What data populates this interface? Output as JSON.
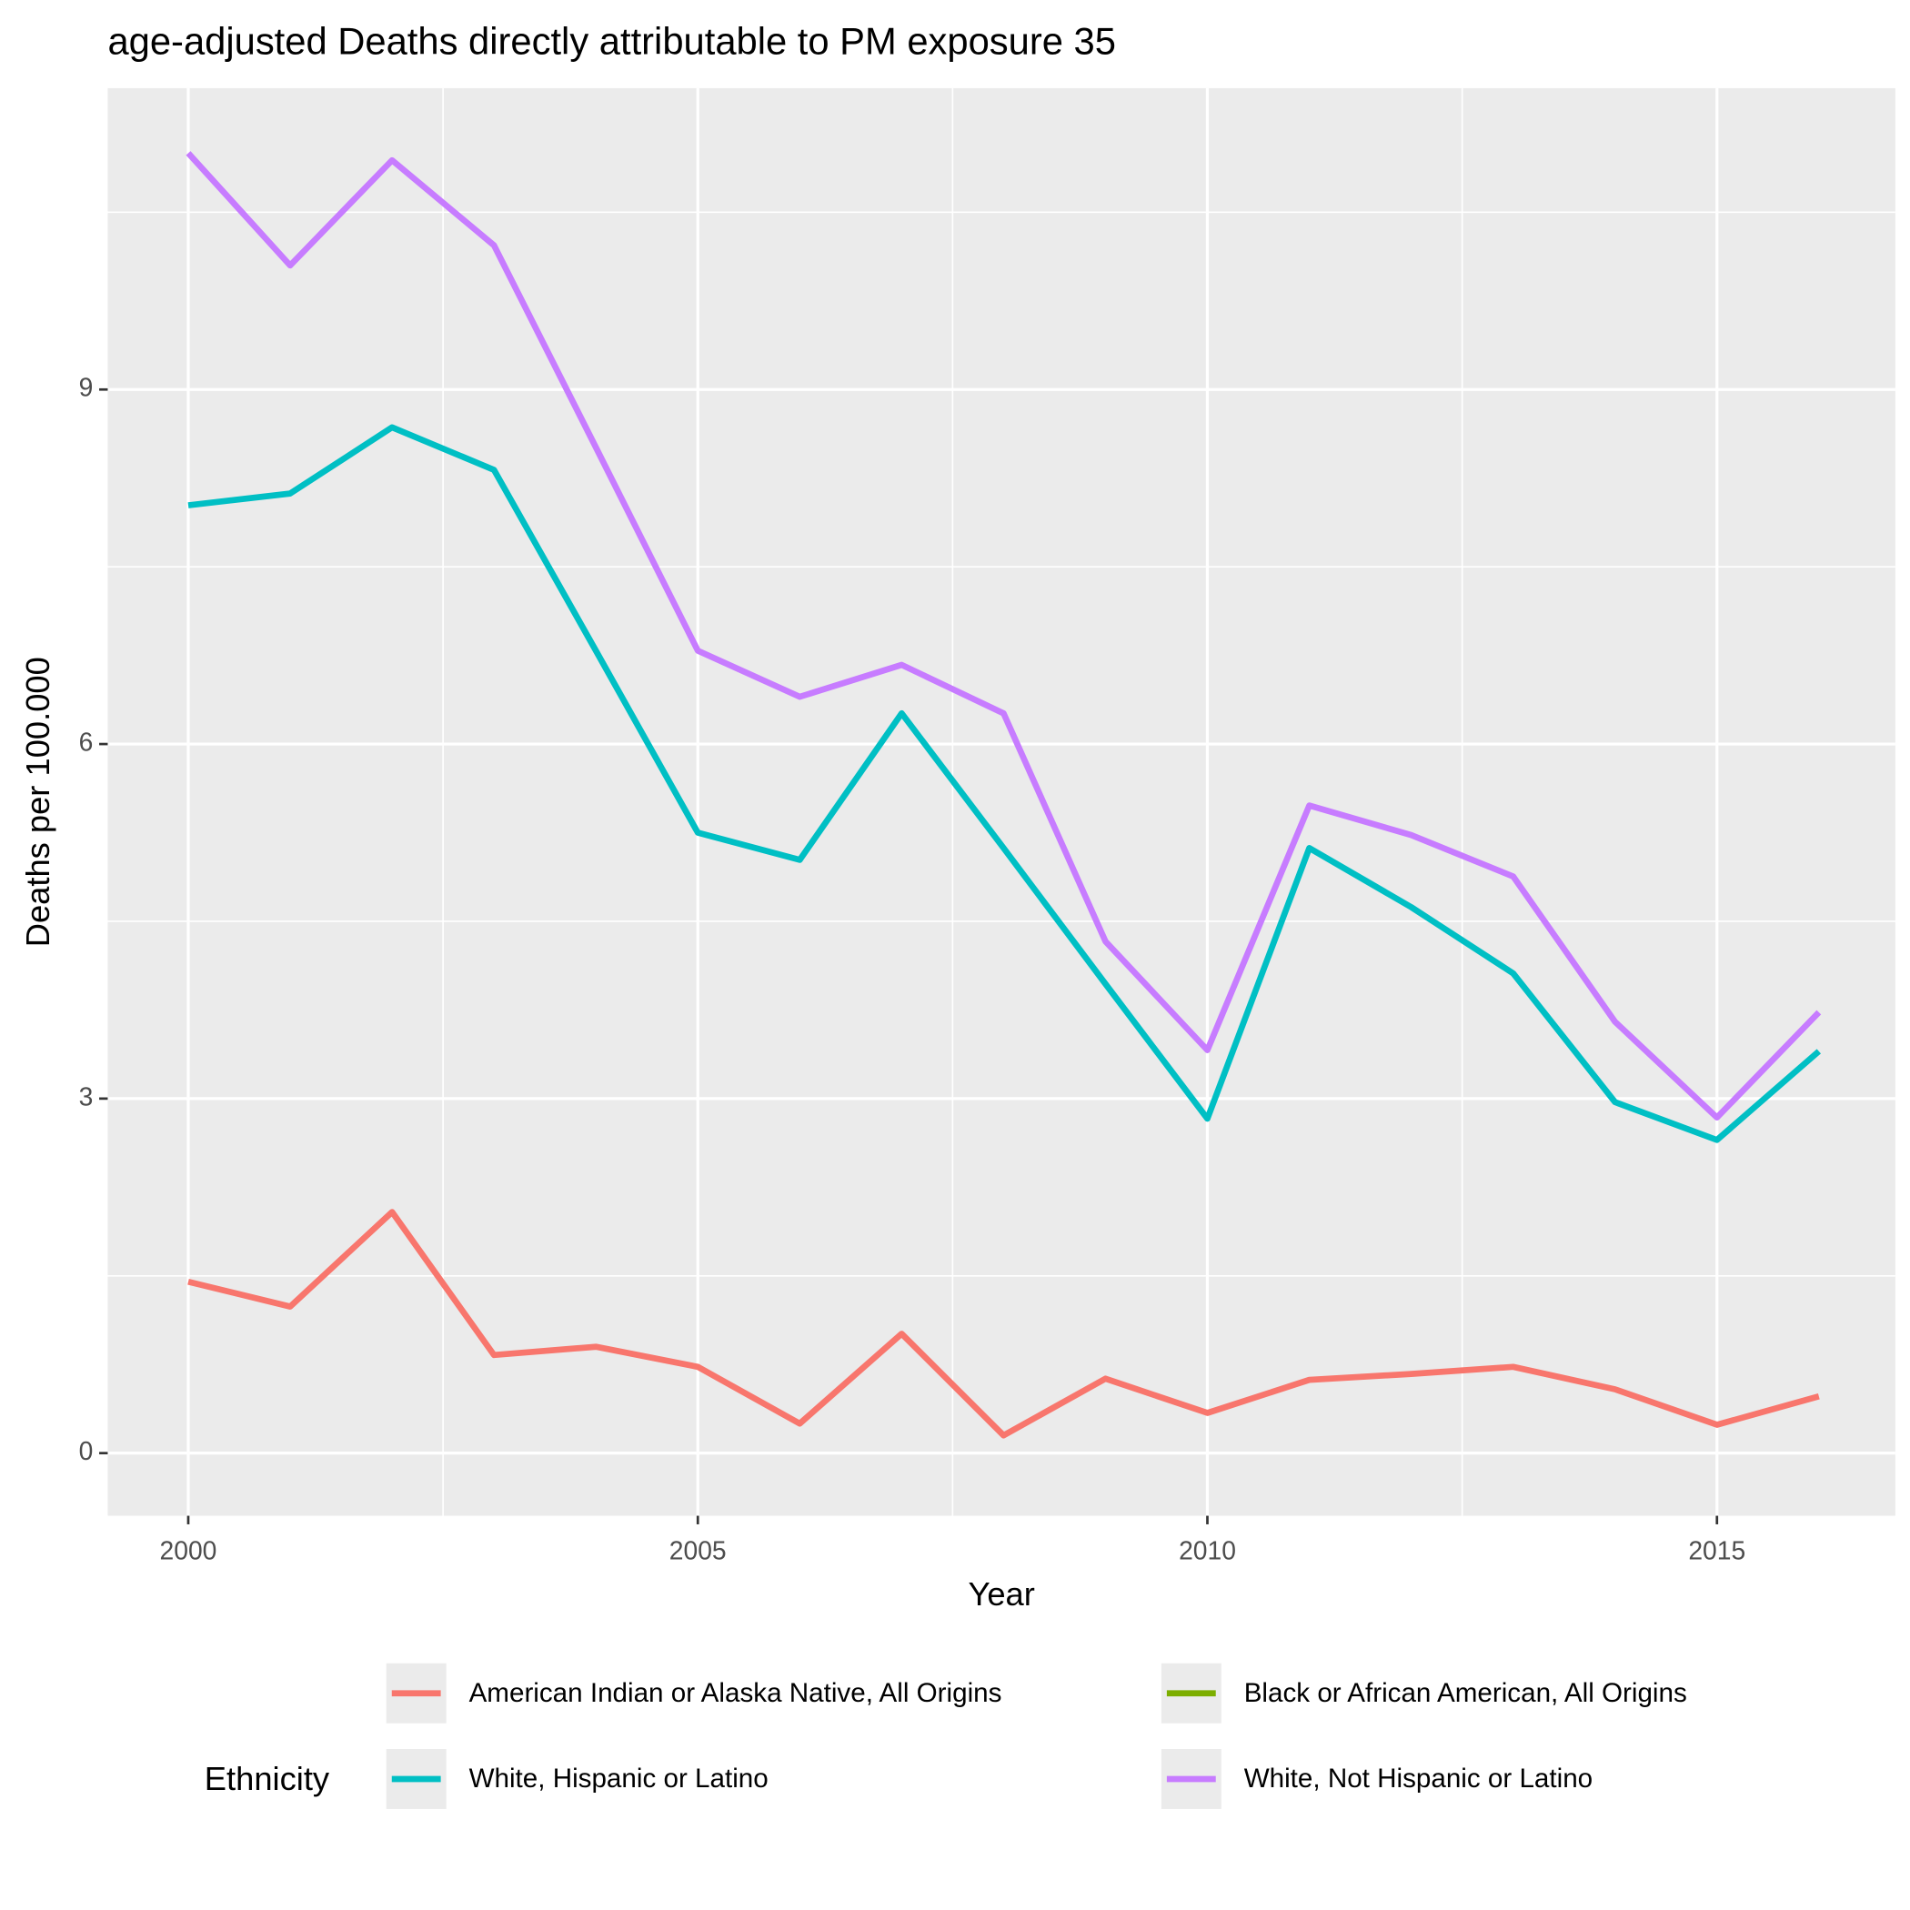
{
  "chart_data": {
    "type": "line",
    "title": "age-adjusted Deaths directly attributable to PM exposure 35",
    "x_label": "Year",
    "y_label": "Deaths per 100.000",
    "legend_title": "Ethnicity",
    "legend_position": "bottom",
    "x": [
      2000,
      2001,
      2002,
      2003,
      2004,
      2005,
      2006,
      2007,
      2008,
      2009,
      2010,
      2011,
      2012,
      2013,
      2014,
      2015,
      2016
    ],
    "series": [
      {
        "name": "American Indian or Alaska Native, All Origins",
        "color": "#F8766D",
        "values": [
          1.45,
          1.24,
          2.04,
          0.83,
          0.9,
          0.73,
          0.25,
          1.01,
          0.15,
          0.63,
          0.34,
          0.62,
          0.67,
          0.73,
          0.54,
          0.24,
          0.48
        ]
      },
      {
        "name": "Black or African American, All Origins",
        "color": "#7CAE00",
        "values": [
          null,
          null,
          null,
          null,
          null,
          null,
          null,
          null,
          null,
          null,
          null,
          null,
          null,
          null,
          null,
          null,
          null
        ]
      },
      {
        "name": "White, Hispanic or Latino",
        "color": "#00BFC4",
        "values": [
          8.02,
          8.12,
          8.68,
          8.32,
          6.79,
          5.25,
          5.02,
          6.26,
          5.12,
          3.97,
          2.83,
          5.12,
          4.62,
          4.06,
          2.97,
          2.65,
          3.4
        ]
      },
      {
        "name": "White, Not Hispanic or Latino",
        "color": "#C77CFF",
        "values": [
          11.0,
          10.05,
          10.94,
          10.22,
          8.51,
          6.79,
          6.4,
          6.67,
          6.26,
          4.33,
          3.41,
          5.48,
          5.23,
          4.88,
          3.65,
          2.84,
          3.73
        ]
      }
    ],
    "xlim": [
      1999.21,
      2016.75
    ],
    "xticks": [
      2000,
      2005,
      2010,
      2015
    ],
    "x_minor_grid": [
      2002.5,
      2007.5,
      2012.5
    ],
    "ylim": [
      -0.53,
      11.55
    ],
    "yticks": [
      0,
      3,
      6,
      9
    ],
    "y_minor_grid": [
      1.5,
      4.5,
      7.5,
      10.5
    ],
    "grid": true
  }
}
